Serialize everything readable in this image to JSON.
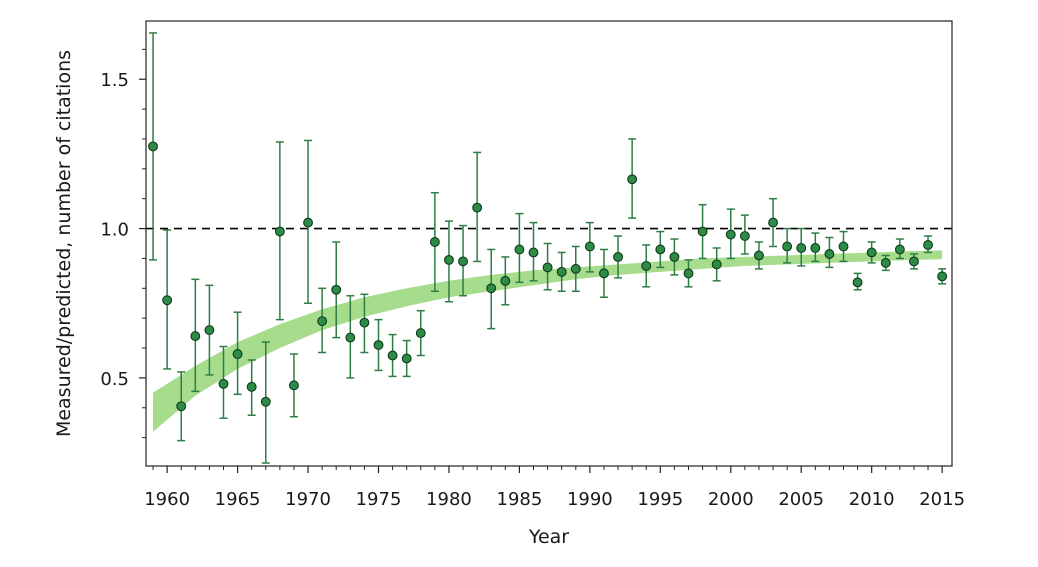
{
  "chart_data": {
    "type": "scatter",
    "title": "",
    "xlabel": "Year",
    "ylabel": "Measured/predicted, number of citations",
    "xlim": [
      1958.5,
      2015.7
    ],
    "ylim": [
      0.205,
      1.695
    ],
    "x_ticks": [
      1960,
      1965,
      1970,
      1975,
      1980,
      1985,
      1990,
      1995,
      2000,
      2005,
      2010,
      2015
    ],
    "y_ticks": [
      0.5,
      1.0,
      1.5
    ],
    "y_tick_labels": [
      "0.5",
      "1.0",
      "1.5"
    ],
    "reference_line": {
      "y": 1.0,
      "style": "dashed",
      "color": "#000000"
    },
    "colors": {
      "point_fill": "#2e8b46",
      "point_edge": "#0d3a1c",
      "error_bar": "#2e7d46",
      "band": "#a6dc8c"
    },
    "band": {
      "x": [
        1959,
        1962,
        1965,
        1968,
        1971,
        1974,
        1977,
        1980,
        1983,
        1986,
        1989,
        1992,
        1995,
        1998,
        2001,
        2004,
        2007,
        2010,
        2013,
        2015
      ],
      "lower": [
        0.32,
        0.44,
        0.53,
        0.6,
        0.66,
        0.705,
        0.74,
        0.77,
        0.79,
        0.81,
        0.83,
        0.845,
        0.855,
        0.865,
        0.875,
        0.88,
        0.885,
        0.89,
        0.895,
        0.897
      ],
      "upper": [
        0.45,
        0.54,
        0.62,
        0.68,
        0.73,
        0.77,
        0.8,
        0.825,
        0.845,
        0.86,
        0.87,
        0.88,
        0.89,
        0.9,
        0.905,
        0.91,
        0.915,
        0.92,
        0.925,
        0.927
      ]
    },
    "series": [
      {
        "x": [
          1959,
          1960,
          1961,
          1962,
          1963,
          1964,
          1965,
          1966,
          1967,
          1968,
          1969,
          1970,
          1971,
          1972,
          1973,
          1974,
          1975,
          1976,
          1977,
          1978,
          1979,
          1980,
          1981,
          1982,
          1983,
          1984,
          1985,
          1986,
          1987,
          1988,
          1989,
          1990,
          1991,
          1992,
          1993,
          1994,
          1995,
          1996,
          1997,
          1998,
          1999,
          2000,
          2001,
          2002,
          2003,
          2004,
          2005,
          2006,
          2007,
          2008,
          2009,
          2010,
          2011,
          2012,
          2013,
          2014,
          2015
        ],
        "y": [
          1.275,
          0.76,
          0.405,
          0.64,
          0.66,
          0.48,
          0.58,
          0.47,
          0.42,
          0.99,
          0.475,
          1.02,
          0.69,
          0.795,
          0.635,
          0.685,
          0.61,
          0.575,
          0.565,
          0.65,
          0.955,
          0.895,
          0.89,
          1.07,
          0.8,
          0.825,
          0.93,
          0.92,
          0.87,
          0.855,
          0.865,
          0.94,
          0.85,
          0.905,
          1.165,
          0.875,
          0.93,
          0.905,
          0.85,
          0.99,
          0.88,
          0.98,
          0.975,
          0.91,
          1.02,
          0.94,
          0.935,
          0.935,
          0.915,
          0.94,
          0.82,
          0.92,
          0.885,
          0.93,
          0.89,
          0.945,
          0.84
        ],
        "low": [
          0.895,
          0.53,
          0.29,
          0.455,
          0.51,
          0.365,
          0.445,
          0.375,
          0.215,
          0.695,
          0.37,
          0.75,
          0.585,
          0.635,
          0.5,
          0.585,
          0.525,
          0.505,
          0.505,
          0.575,
          0.79,
          0.755,
          0.775,
          0.89,
          0.665,
          0.745,
          0.82,
          0.825,
          0.795,
          0.79,
          0.79,
          0.855,
          0.77,
          0.835,
          1.035,
          0.805,
          0.87,
          0.845,
          0.805,
          0.9,
          0.825,
          0.9,
          0.915,
          0.865,
          0.94,
          0.885,
          0.875,
          0.89,
          0.87,
          0.89,
          0.795,
          0.885,
          0.86,
          0.9,
          0.865,
          0.92,
          0.815
        ],
        "high": [
          1.655,
          0.995,
          0.52,
          0.83,
          0.81,
          0.605,
          0.72,
          0.56,
          0.62,
          1.29,
          0.58,
          1.295,
          0.8,
          0.955,
          0.775,
          0.78,
          0.695,
          0.645,
          0.625,
          0.725,
          1.12,
          1.025,
          1.01,
          1.255,
          0.93,
          0.905,
          1.05,
          1.02,
          0.95,
          0.92,
          0.94,
          1.02,
          0.93,
          0.975,
          1.3,
          0.945,
          0.99,
          0.965,
          0.895,
          1.08,
          0.935,
          1.065,
          1.045,
          0.955,
          1.1,
          1.0,
          1.0,
          0.985,
          0.97,
          0.99,
          0.85,
          0.955,
          0.91,
          0.965,
          0.915,
          0.975,
          0.865
        ]
      }
    ]
  }
}
